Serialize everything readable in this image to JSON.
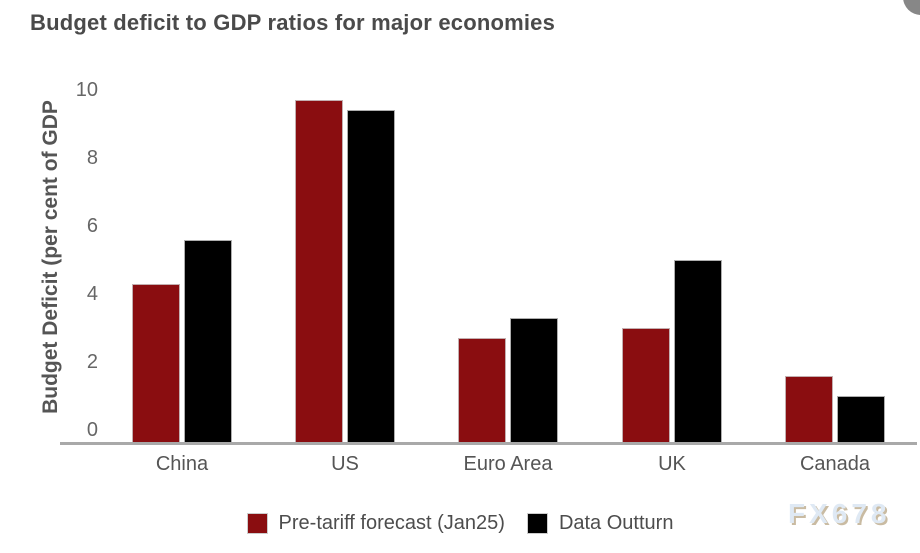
{
  "header": {
    "title": "Budget deficit to GDP ratios for major economies"
  },
  "watermark": "FX678",
  "corner_button": {
    "color": "#878787"
  },
  "colors": {
    "series1": "#8a0d10",
    "series2": "#000000",
    "axis_line": "#a9a9a9",
    "text_dark": "#4a4a4a",
    "text_medium": "#555555",
    "tick_text": "#666666"
  },
  "chart_data": {
    "type": "bar",
    "title": "Budget deficit to GDP ratios for major economies",
    "xlabel": "",
    "ylabel": "Budget Deficit (per cent of GDP",
    "categories": [
      "China",
      "US",
      "Euro Area",
      "UK",
      "Canada"
    ],
    "series": [
      {
        "name": "Pre-tariff forecast (Jan25)",
        "color": "#8a0d10",
        "values": [
          4.3,
          9.7,
          2.7,
          3.0,
          1.6
        ]
      },
      {
        "name": "Data Outturn",
        "color": "#000000",
        "values": [
          5.6,
          9.4,
          3.3,
          5.0,
          1.0
        ]
      }
    ],
    "ylim": [
      0,
      10
    ],
    "yticks": [
      0,
      2,
      4,
      6,
      8,
      10
    ],
    "grid": false,
    "legend_position": "bottom"
  }
}
